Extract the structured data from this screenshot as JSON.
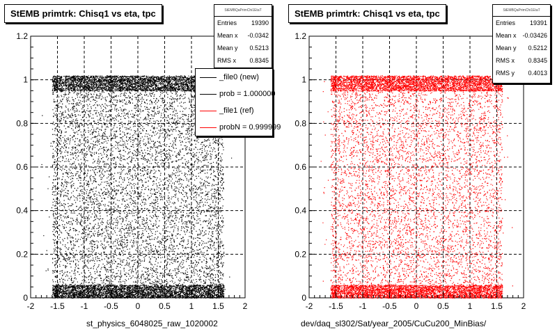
{
  "chart_data": [
    {
      "type": "scatter",
      "title": "StEMB primtrk: Chisq1 vs eta, tpc",
      "xlabel": "st_physics_6048025_raw_1020002",
      "ylabel": "",
      "xlim": [
        -2,
        2
      ],
      "ylim": [
        0,
        1.2
      ],
      "xticks": [
        "-2",
        "-1.5",
        "-1",
        "-0.5",
        "0",
        "0.5",
        "1",
        "1.5",
        "2"
      ],
      "yticks": [
        "0",
        "0.2",
        "0.4",
        "0.6",
        "0.8",
        "1",
        "1.2"
      ],
      "grid": true,
      "marker_color": "#000000",
      "x_range_of_points": [
        -1.6,
        1.6
      ],
      "dense_bands_y": [
        [
          0.0,
          0.06
        ],
        [
          0.95,
          1.02
        ]
      ],
      "stats": {
        "name": "StEMBQaPrimChi1EtaT",
        "rows": [
          {
            "label": "Entries",
            "value": "19390"
          },
          {
            "label": "Mean x",
            "value": "-0.0342"
          },
          {
            "label": "Mean y",
            "value": "0.5213"
          },
          {
            "label": "RMS x",
            "value": "0.8345"
          }
        ]
      },
      "legend": [
        {
          "label": "_file0 (new)",
          "color": "#000000"
        },
        {
          "label": "prob = 1.000000",
          "color": "#000000"
        },
        {
          "label": "_file1 (ref)",
          "color": "#ff0000"
        },
        {
          "label": "probN = 0.999999",
          "color": "#ff0000"
        }
      ]
    },
    {
      "type": "scatter",
      "title": "StEMB primtrk: Chisq1 vs eta, tpc",
      "xlabel": "dev/daq_sl302/Sat/year_2005/CuCu200_MinBias/",
      "ylabel": "",
      "xlim": [
        -2,
        2
      ],
      "ylim": [
        0,
        1.2
      ],
      "xticks": [
        "-2",
        "-1.5",
        "-1",
        "-0.5",
        "0",
        "0.5",
        "1",
        "1.5",
        "2"
      ],
      "yticks": [
        "0",
        "0.2",
        "0.4",
        "0.6",
        "0.8",
        "1",
        "1.2"
      ],
      "grid": true,
      "marker_color": "#ff0000",
      "x_range_of_points": [
        -1.6,
        1.6
      ],
      "dense_bands_y": [
        [
          0.0,
          0.06
        ],
        [
          0.95,
          1.02
        ]
      ],
      "stats": {
        "name": "StEMBQaPrimChi1EtaT",
        "rows": [
          {
            "label": "Entries",
            "value": "19391"
          },
          {
            "label": "Mean x",
            "value": "-0.03426"
          },
          {
            "label": "Mean y",
            "value": "0.5212"
          },
          {
            "label": "RMS x",
            "value": "0.8345"
          },
          {
            "label": "RMS y",
            "value": "0.4013"
          }
        ]
      }
    }
  ]
}
